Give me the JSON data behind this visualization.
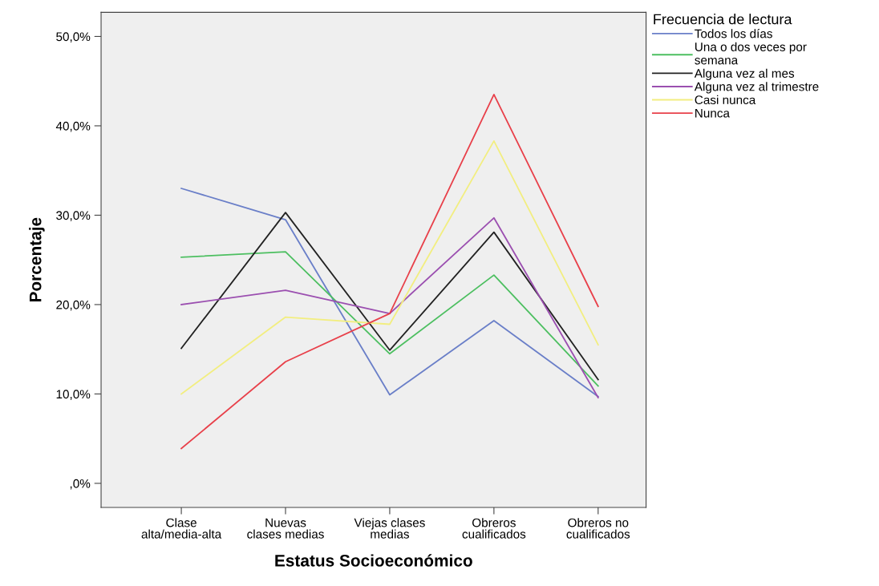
{
  "chart_data": {
    "type": "line",
    "xlabel": "Estatus Socioeconómico",
    "ylabel": "Porcentaje",
    "legend_title": "Frecuencia de lectura",
    "categories": [
      "Clase\nalta/media-alta",
      "Nuevas\nclases medias",
      "Viejas clases\nmedias",
      "Obreros\ncualificados",
      "Obreros no\ncualificados"
    ],
    "series": [
      {
        "name": "Todos los días",
        "color": "#6a7fc8",
        "values": [
          33.0,
          29.5,
          9.9,
          18.2,
          9.7
        ]
      },
      {
        "name": "Una o dos veces por\nsemana",
        "color": "#4cbf60",
        "values": [
          25.3,
          25.9,
          14.5,
          23.3,
          10.9
        ]
      },
      {
        "name": "Alguna vez al mes",
        "color": "#222222",
        "values": [
          15.1,
          30.3,
          14.9,
          28.1,
          11.6
        ]
      },
      {
        "name": "Alguna vez al trimestre",
        "color": "#9b4fb0",
        "values": [
          20.0,
          21.6,
          19.0,
          29.7,
          9.6
        ]
      },
      {
        "name": "Casi nunca",
        "color": "#f2ee80",
        "values": [
          10.0,
          18.6,
          17.8,
          38.3,
          15.5
        ]
      },
      {
        "name": "Nunca",
        "color": "#e8404a",
        "values": [
          3.9,
          13.6,
          19.0,
          43.5,
          19.8
        ]
      }
    ],
    "ylim": [
      -2.7,
      52.7
    ],
    "yticks": [
      {
        "value": 0,
        "label": ",0%"
      },
      {
        "value": 10,
        "label": "10,0%"
      },
      {
        "value": 20,
        "label": "20,0%"
      },
      {
        "value": 30,
        "label": "30,0%"
      },
      {
        "value": 40,
        "label": "40,0%"
      },
      {
        "value": 50,
        "label": "50,0%"
      }
    ],
    "grid": false,
    "legend": "top right",
    "marker": "none",
    "line_style": "solid"
  }
}
